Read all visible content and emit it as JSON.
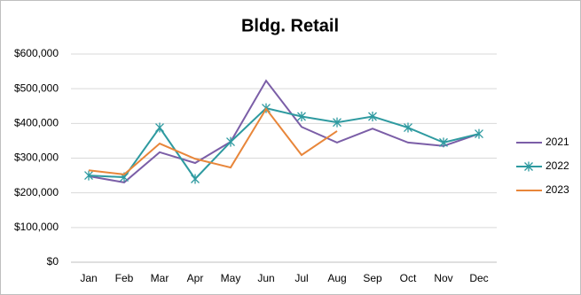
{
  "chart_data": {
    "type": "line",
    "title": "Bldg. Retail",
    "categories": [
      "Jan",
      "Feb",
      "Mar",
      "Apr",
      "May",
      "Jun",
      "Jul",
      "Aug",
      "Sep",
      "Oct",
      "Nov",
      "Dec"
    ],
    "series": [
      {
        "name": "2021",
        "color": "#7b5ea7",
        "marker": "none",
        "values": [
          248000,
          230000,
          317000,
          286000,
          347000,
          523000,
          390000,
          345000,
          385000,
          345000,
          335000,
          370000
        ]
      },
      {
        "name": "2022",
        "color": "#2e9aa0",
        "marker": "asterisk",
        "values": [
          250000,
          245000,
          388000,
          240000,
          347000,
          444000,
          420000,
          403000,
          420000,
          388000,
          345000,
          370000
        ]
      },
      {
        "name": "2023",
        "color": "#e8863a",
        "marker": "none",
        "values": [
          265000,
          253000,
          342000,
          298000,
          273000,
          442000,
          309000,
          378000,
          null,
          null,
          null,
          null
        ]
      }
    ],
    "ylim": [
      0,
      600000
    ],
    "yticks": [
      {
        "value": 0,
        "label": "$0"
      },
      {
        "value": 100000,
        "label": "$100,000"
      },
      {
        "value": 200000,
        "label": "$200,000"
      },
      {
        "value": 300000,
        "label": "$300,000"
      },
      {
        "value": 400000,
        "label": "$400,000"
      },
      {
        "value": 500000,
        "label": "$500,000"
      },
      {
        "value": 600000,
        "label": "$600,000"
      }
    ],
    "grid": true,
    "legend": "right"
  }
}
